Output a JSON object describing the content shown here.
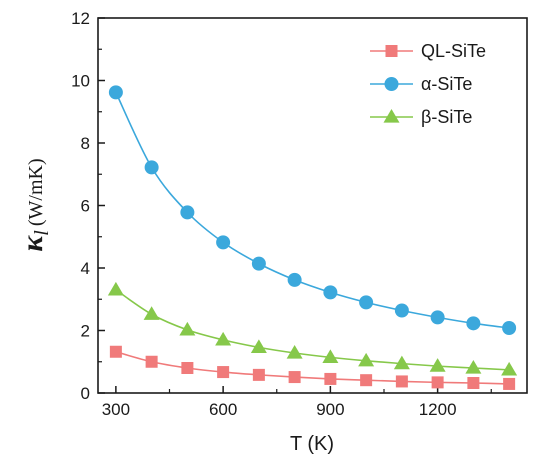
{
  "chart_data": {
    "type": "line",
    "xlabel": "T (K)",
    "ylabel": {
      "symbol": "κ",
      "subscript": "l",
      "unit": "(W/mK)"
    },
    "xlim": [
      250,
      1450
    ],
    "ylim": [
      0,
      12
    ],
    "xticks": [
      300,
      600,
      900,
      1200
    ],
    "yticks": [
      0,
      2,
      4,
      6,
      8,
      10,
      12
    ],
    "x": [
      300,
      400,
      500,
      600,
      700,
      800,
      900,
      1000,
      1100,
      1200,
      1300,
      1400
    ],
    "legend_position": "top-right",
    "series": [
      {
        "name": "QL-SiTe",
        "color": "#f07a7a",
        "marker": "square",
        "values": [
          1.32,
          1.0,
          0.8,
          0.67,
          0.58,
          0.51,
          0.45,
          0.41,
          0.37,
          0.34,
          0.32,
          0.29
        ]
      },
      {
        "name": "α-SiTe",
        "color": "#3ba8dc",
        "marker": "circle",
        "values": [
          9.62,
          7.22,
          5.78,
          4.82,
          4.14,
          3.62,
          3.22,
          2.9,
          2.64,
          2.42,
          2.23,
          2.08
        ]
      },
      {
        "name": "β-SiTe",
        "color": "#86c84a",
        "marker": "triangle",
        "values": [
          3.3,
          2.52,
          2.02,
          1.7,
          1.46,
          1.28,
          1.14,
          1.03,
          0.94,
          0.86,
          0.8,
          0.74
        ]
      }
    ]
  }
}
